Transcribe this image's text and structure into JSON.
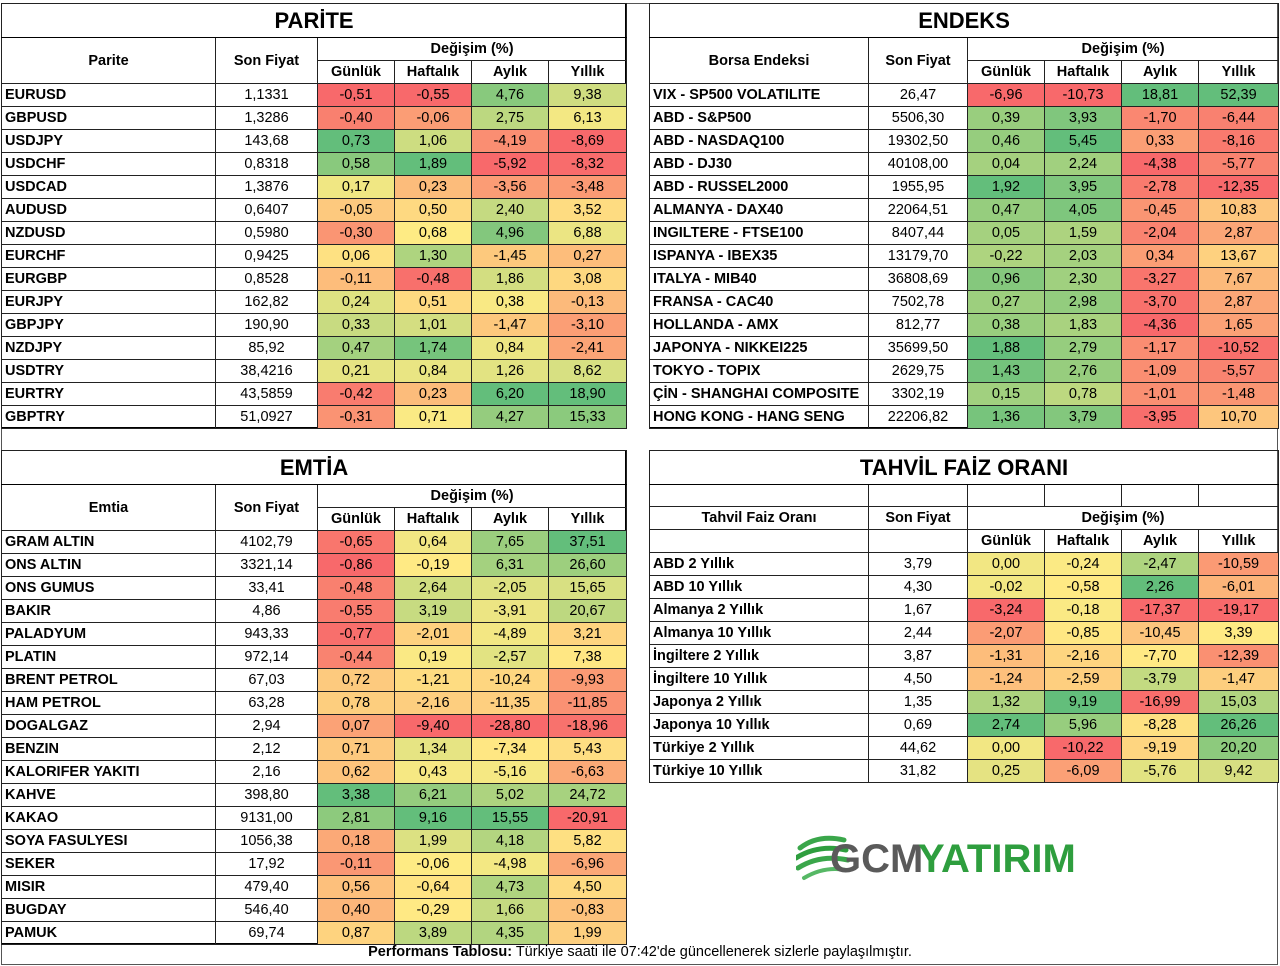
{
  "parite": {
    "title": "PARİTE",
    "col_name": "Parite",
    "col_price": "Son Fiyat",
    "col_change": "Değişim (%)",
    "periods": [
      "Günlük",
      "Haftalık",
      "Aylık",
      "Yıllık"
    ],
    "rows": [
      [
        "EURUSD",
        "1,1331",
        "-0,51",
        "-0,55",
        "4,76",
        "9,38"
      ],
      [
        "GBPUSD",
        "1,3286",
        "-0,40",
        "-0,06",
        "2,75",
        "6,13"
      ],
      [
        "USDJPY",
        "143,68",
        "0,73",
        "1,06",
        "-4,19",
        "-8,69"
      ],
      [
        "USDCHF",
        "0,8318",
        "0,58",
        "1,89",
        "-5,92",
        "-8,32"
      ],
      [
        "USDCAD",
        "1,3876",
        "0,17",
        "0,23",
        "-3,56",
        "-3,48"
      ],
      [
        "AUDUSD",
        "0,6407",
        "-0,05",
        "0,50",
        "2,40",
        "3,52"
      ],
      [
        "NZDUSD",
        "0,5980",
        "-0,30",
        "0,68",
        "4,96",
        "6,88"
      ],
      [
        "EURCHF",
        "0,9425",
        "0,06",
        "1,30",
        "-1,45",
        "0,27"
      ],
      [
        "EURGBP",
        "0,8528",
        "-0,11",
        "-0,48",
        "1,86",
        "3,08"
      ],
      [
        "EURJPY",
        "162,82",
        "0,24",
        "0,51",
        "0,38",
        "-0,13"
      ],
      [
        "GBPJPY",
        "190,90",
        "0,33",
        "1,01",
        "-1,47",
        "-3,10"
      ],
      [
        "NZDJPY",
        "85,92",
        "0,47",
        "1,74",
        "0,84",
        "-2,41"
      ],
      [
        "USDTRY",
        "38,4216",
        "0,21",
        "0,84",
        "1,26",
        "8,62"
      ],
      [
        "EURTRY",
        "43,5859",
        "-0,42",
        "0,23",
        "6,20",
        "18,90"
      ],
      [
        "GBPTRY",
        "51,0927",
        "-0,31",
        "0,71",
        "4,27",
        "15,33"
      ]
    ]
  },
  "endeks": {
    "title": "ENDEKS",
    "col_name": "Borsa Endeksi",
    "col_price": "Son Fiyat",
    "col_change": "Değişim (%)",
    "periods": [
      "Günlük",
      "Haftalık",
      "Aylık",
      "Yıllık"
    ],
    "rows": [
      [
        "VIX  - SP500 VOLATILITE",
        "26,47",
        "-6,96",
        "-10,73",
        "18,81",
        "52,39"
      ],
      [
        "ABD - S&P500",
        "5506,30",
        "0,39",
        "3,93",
        "-1,70",
        "-6,44"
      ],
      [
        "ABD - NASDAQ100",
        "19302,50",
        "0,46",
        "5,45",
        "0,33",
        "-8,16"
      ],
      [
        "ABD - DJ30",
        "40108,00",
        "0,04",
        "2,24",
        "-4,38",
        "-5,77"
      ],
      [
        "ABD - RUSSEL2000",
        "1955,95",
        "1,92",
        "3,95",
        "-2,78",
        "-12,35"
      ],
      [
        "ALMANYA - DAX40",
        "22064,51",
        "0,47",
        "4,05",
        "-0,45",
        "10,83"
      ],
      [
        "INGILTERE - FTSE100",
        "8407,44",
        "0,05",
        "1,59",
        "-2,04",
        "2,87"
      ],
      [
        "ISPANYA - IBEX35",
        "13179,70",
        "-0,22",
        "2,03",
        "0,34",
        "13,67"
      ],
      [
        "ITALYA - MIB40",
        "36808,69",
        "0,96",
        "2,30",
        "-3,27",
        "7,67"
      ],
      [
        "FRANSA - CAC40",
        "7502,78",
        "0,27",
        "2,98",
        "-3,70",
        "2,87"
      ],
      [
        "HOLLANDA - AMX",
        "812,77",
        "0,38",
        "1,83",
        "-4,36",
        "1,65"
      ],
      [
        "JAPONYA - NIKKEI225",
        "35699,50",
        "1,88",
        "2,79",
        "-1,17",
        "-10,52"
      ],
      [
        "TOKYO - TOPIX",
        "2629,75",
        "1,43",
        "2,76",
        "-1,09",
        "-5,57"
      ],
      [
        "ÇİN - SHANGHAI COMPOSITE",
        "3302,19",
        "0,15",
        "0,78",
        "-1,01",
        "-1,48"
      ],
      [
        "HONG KONG - HANG SENG",
        "22206,82",
        "1,36",
        "3,79",
        "-3,95",
        "10,70"
      ]
    ]
  },
  "emtia": {
    "title": "EMTİA",
    "col_name": "Emtia",
    "col_price": "Son Fiyat",
    "col_change": "Değişim (%)",
    "periods": [
      "Günlük",
      "Haftalık",
      "Aylık",
      "Yıllık"
    ],
    "rows": [
      [
        "GRAM ALTIN",
        "4102,79",
        "-0,65",
        "0,64",
        "7,65",
        "37,51"
      ],
      [
        "ONS ALTIN",
        "3321,14",
        "-0,86",
        "-0,19",
        "6,31",
        "26,60"
      ],
      [
        "ONS GUMUS",
        "33,41",
        "-0,48",
        "2,64",
        "-2,05",
        "15,65"
      ],
      [
        "BAKIR",
        "4,86",
        "-0,55",
        "3,19",
        "-3,91",
        "20,67"
      ],
      [
        "PALADYUM",
        "943,33",
        "-0,77",
        "-2,01",
        "-4,89",
        "3,21"
      ],
      [
        "PLATIN",
        "972,14",
        "-0,44",
        "0,19",
        "-2,57",
        "7,38"
      ],
      [
        "BRENT PETROL",
        "67,03",
        "0,72",
        "-1,21",
        "-10,24",
        "-9,93"
      ],
      [
        "HAM PETROL",
        "63,28",
        "0,78",
        "-2,16",
        "-11,35",
        "-11,85"
      ],
      [
        "DOGALGAZ",
        "2,94",
        "0,07",
        "-9,40",
        "-28,80",
        "-18,96"
      ],
      [
        "BENZIN",
        "2,12",
        "0,71",
        "1,34",
        "-7,34",
        "5,43"
      ],
      [
        "KALORIFER YAKITI",
        "2,16",
        "0,62",
        "0,43",
        "-5,16",
        "-6,63"
      ],
      [
        "KAHVE",
        "398,80",
        "3,38",
        "6,21",
        "5,02",
        "24,72"
      ],
      [
        "KAKAO",
        "9131,00",
        "2,81",
        "9,16",
        "15,55",
        "-20,91"
      ],
      [
        "SOYA FASULYESI",
        "1056,38",
        "0,18",
        "1,99",
        "4,18",
        "5,82"
      ],
      [
        "SEKER",
        "17,92",
        "-0,11",
        "-0,06",
        "-4,98",
        "-6,96"
      ],
      [
        "MISIR",
        "479,40",
        "0,56",
        "-0,64",
        "4,73",
        "4,50"
      ],
      [
        "BUGDAY",
        "546,40",
        "0,40",
        "-0,29",
        "1,66",
        "-0,83"
      ],
      [
        "PAMUK",
        "69,74",
        "0,87",
        "3,89",
        "4,35",
        "1,99"
      ]
    ]
  },
  "tahvil": {
    "title": "TAHVİL FAİZ ORANI",
    "col_name": "Tahvil Faiz Oranı",
    "col_price": "Son Fiyat",
    "col_change": "Değişim (%)",
    "periods": [
      "Günlük",
      "Haftalık",
      "Aylık",
      "Yıllık"
    ],
    "rows": [
      [
        "ABD 2 Yıllık",
        "3,79",
        "0,00",
        "-0,24",
        "-2,47",
        "-10,59"
      ],
      [
        "ABD 10 Yıllık",
        "4,30",
        "-0,02",
        "-0,58",
        "2,26",
        "-6,01"
      ],
      [
        "Almanya 2 Yıllık",
        "1,67",
        "-3,24",
        "-0,18",
        "-17,37",
        "-19,17"
      ],
      [
        "Almanya 10 Yıllık",
        "2,44",
        "-2,07",
        "-0,85",
        "-10,45",
        "3,39"
      ],
      [
        "İngiltere 2 Yıllık",
        "3,87",
        "-1,31",
        "-2,16",
        "-7,70",
        "-12,39"
      ],
      [
        "İngiltere 10 Yıllık",
        "4,50",
        "-1,24",
        "-2,59",
        "-3,79",
        "-1,47"
      ],
      [
        "Japonya 2 Yıllık",
        "1,35",
        "1,32",
        "9,19",
        "-16,99",
        "15,03"
      ],
      [
        "Japonya 10 Yıllık",
        "0,69",
        "2,74",
        "5,96",
        "-8,28",
        "26,26"
      ],
      [
        "Türkiye 2 Yıllık",
        "44,62",
        "0,00",
        "-10,22",
        "-9,19",
        "20,20"
      ],
      [
        "Türkiye 10 Yıllık",
        "31,82",
        "0,25",
        "-6,09",
        "-5,76",
        "9,42"
      ]
    ]
  },
  "logo": {
    "part1": "GCM",
    "part2": "YATIRIM",
    "color1": "#5a5a5a",
    "color2": "#2e9e3e"
  },
  "footer": {
    "bold": "Performans Tablosu:",
    "text": " Türkiye saati ile 07:42'de güncellenerek sizlerle paylaşılmıştır."
  },
  "colors": {
    "red": "#f8696b",
    "yellow": "#ffeb84",
    "green": "#63be7b"
  }
}
